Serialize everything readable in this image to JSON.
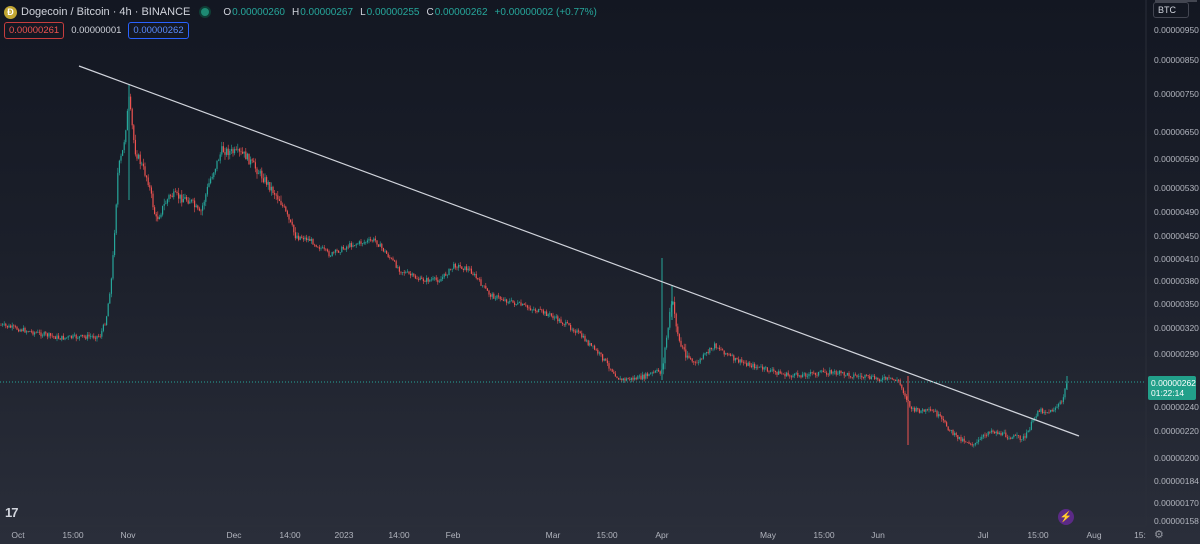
{
  "header": {
    "title": "Dogecoin / Bitcoin · 4h · BINANCE",
    "ohlc": [
      {
        "label": "O",
        "value": "0.00000260"
      },
      {
        "label": "H",
        "value": "0.00000267"
      },
      {
        "label": "L",
        "value": "0.00000255"
      },
      {
        "label": "C",
        "value": "0.00000262"
      }
    ],
    "change": "+0.00000002 (+0.77%)"
  },
  "quotes": {
    "sell": "0.00000261",
    "spread": "0.00000001",
    "buy": "0.00000262"
  },
  "currency": "BTC",
  "current_price": {
    "value": "0.00000262",
    "countdown": "01:22:14"
  },
  "colors": {
    "up": "#26a69a",
    "down": "#ef5350",
    "accent": "#2962ff",
    "price_tag": "#22a08a"
  },
  "icons": {
    "logo": "tradingview-logo-icon",
    "alert": "lightning-icon",
    "settings": "gear-icon"
  },
  "chart_data": {
    "type": "candlestick",
    "y_scale": "log",
    "y_axis_ticks": [
      "0.00000950",
      "0.00000850",
      "0.00000750",
      "0.00000650",
      "0.00000590",
      "0.00000530",
      "0.00000490",
      "0.00000450",
      "0.00000410",
      "0.00000380",
      "0.00000350",
      "0.00000320",
      "0.00000290",
      "0.00000240",
      "0.00000220",
      "0.00000200",
      "0.00000184",
      "0.00000170",
      "0.00000158"
    ],
    "x_axis_ticks": [
      "Oct",
      "15:00",
      "Nov",
      "Dec",
      "14:00",
      "2023",
      "14:00",
      "Feb",
      "Mar",
      "15:00",
      "Apr",
      "May",
      "15:00",
      "Jun",
      "Jul",
      "15:00",
      "Aug",
      "15:"
    ],
    "approx_close_path": [
      {
        "t": "Oct",
        "price": 3.1e-06
      },
      {
        "t": "15:00",
        "price": 3.02e-06
      },
      {
        "t": "late Oct",
        "price": 3.05e-06
      },
      {
        "t": "Nov",
        "price": 7.2e-06
      },
      {
        "t": "mid Nov",
        "price": 5.2e-06
      },
      {
        "t": "Dec",
        "price": 6.3e-06
      },
      {
        "t": "14:00",
        "price": 4.7e-06
      },
      {
        "t": "2023",
        "price": 4.4e-06
      },
      {
        "t": "14:00",
        "price": 3.9e-06
      },
      {
        "t": "Feb",
        "price": 4e-06
      },
      {
        "t": "Mar",
        "price": 3.2e-06
      },
      {
        "t": "15:00",
        "price": 2.7e-06
      },
      {
        "t": "Apr",
        "price": 3.8e-06
      },
      {
        "t": "mid Apr",
        "price": 3e-06
      },
      {
        "t": "May",
        "price": 2.7e-06
      },
      {
        "t": "15:00",
        "price": 2.7e-06
      },
      {
        "t": "Jun",
        "price": 2.6e-06
      },
      {
        "t": "mid Jun",
        "price": 2.2e-06
      },
      {
        "t": "Jul",
        "price": 2.1e-06
      },
      {
        "t": "15:00",
        "price": 2.2e-06
      },
      {
        "t": "late Jul",
        "price": 2.62e-06
      }
    ],
    "trendline": {
      "from_price": 8.5e-06,
      "to_price": 2.1e-06,
      "from_date": "Oct 15:00",
      "to_date": "late Jul"
    },
    "current_price": 2.62e-06
  }
}
